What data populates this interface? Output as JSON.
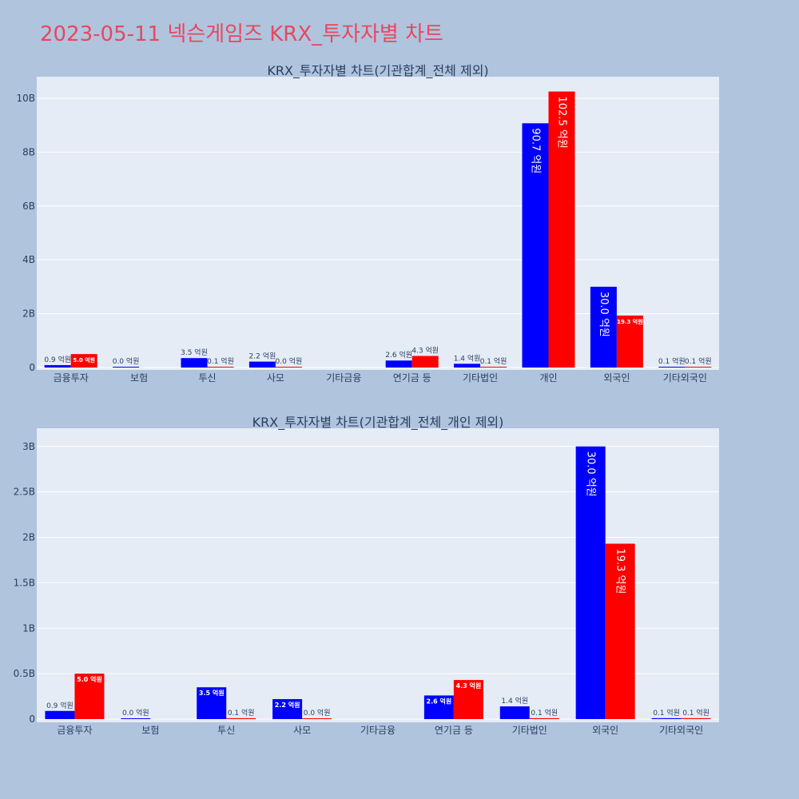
{
  "page": {
    "title": "2023-05-11 넥슨게임즈 KRX_투자자별 차트"
  },
  "colors": {
    "background": "#b0c4de",
    "plot_background": "#e5ecf6",
    "title": "#e8475f",
    "buy": "#0000ff",
    "sell": "#ff0000"
  },
  "chart_data": [
    {
      "type": "bar",
      "title": "KRX_투자자별 차트(기관합계_전체 제외)",
      "categories": [
        "금융투자",
        "보험",
        "투신",
        "사모",
        "기타금융",
        "연기금 등",
        "기타법인",
        "개인",
        "외국인",
        "기타외국인"
      ],
      "series": [
        {
          "color": "#0000ff",
          "values": [
            90000000,
            0,
            350000000,
            220000000,
            null,
            260000000,
            140000000,
            9070000000,
            3000000000,
            10000000
          ],
          "labels": [
            "0.9 억원",
            "0.0 억원",
            "3.5 억원",
            "2.2 억원",
            "",
            "2.6 억원",
            "1.4 억원",
            "90.7 억원",
            "30.0 억원",
            "0.1 억원"
          ]
        },
        {
          "color": "#ff0000",
          "values": [
            500000000,
            null,
            10000000,
            0,
            null,
            430000000,
            10000000,
            10250000000,
            1930000000,
            10000000
          ],
          "labels": [
            "5.0 억원",
            "",
            "0.1 억원",
            "0.0 억원",
            "",
            "4.3 억원",
            "0.1 억원",
            "102.5 억원",
            "19.3 억원",
            "0.1 억원"
          ]
        }
      ],
      "yticks": [
        {
          "value": 0,
          "label": "0"
        },
        {
          "value": 2000000000,
          "label": "2B"
        },
        {
          "value": 4000000000,
          "label": "4B"
        },
        {
          "value": 6000000000,
          "label": "6B"
        },
        {
          "value": 8000000000,
          "label": "8B"
        },
        {
          "value": 10000000000,
          "label": "10B"
        }
      ],
      "ylim": [
        0,
        10800000000
      ],
      "grid": true
    },
    {
      "type": "bar",
      "title": "KRX_투자자별 차트(기관합계_전체_개인 제외)",
      "categories": [
        "금융투자",
        "보험",
        "투신",
        "사모",
        "기타금융",
        "연기금 등",
        "기타법인",
        "외국인",
        "기타외국인"
      ],
      "series": [
        {
          "color": "#0000ff",
          "values": [
            90000000,
            0,
            350000000,
            220000000,
            null,
            260000000,
            140000000,
            3000000000,
            10000000
          ],
          "labels": [
            "0.9 억원",
            "0.0 억원",
            "3.5 억원",
            "2.2 억원",
            "",
            "2.6 억원",
            "1.4 억원",
            "30.0 억원",
            "0.1 억원"
          ]
        },
        {
          "color": "#ff0000",
          "values": [
            500000000,
            null,
            10000000,
            0,
            null,
            430000000,
            10000000,
            1930000000,
            10000000
          ],
          "labels": [
            "5.0 억원",
            "",
            "0.1 억원",
            "0.0 억원",
            "",
            "4.3 억원",
            "0.1 억원",
            "19.3 억원",
            "0.1 억원"
          ]
        }
      ],
      "yticks": [
        {
          "value": 0,
          "label": "0"
        },
        {
          "value": 500000000,
          "label": "0.5B"
        },
        {
          "value": 1000000000,
          "label": "1B"
        },
        {
          "value": 1500000000,
          "label": "1.5B"
        },
        {
          "value": 2000000000,
          "label": "2B"
        },
        {
          "value": 2500000000,
          "label": "2.5B"
        },
        {
          "value": 3000000000,
          "label": "3B"
        }
      ],
      "ylim": [
        0,
        3200000000
      ],
      "grid": true
    }
  ]
}
